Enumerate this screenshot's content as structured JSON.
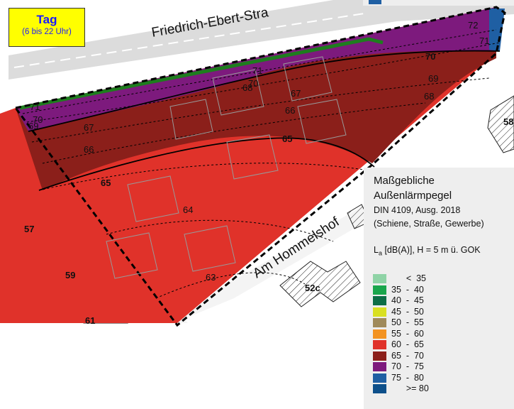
{
  "panel": {
    "title": "Tag",
    "subtitle": "(6 bis 22 Uhr)"
  },
  "streets": {
    "north": "Friedrich-Ebert-Stra",
    "south": "Am Hommelshof"
  },
  "house_numbers": {
    "h57": "57",
    "h59": "59",
    "h61": "61",
    "h52c": "52c",
    "h58": "58"
  },
  "contour_labels": {
    "c72": "72",
    "c71a": "71",
    "c70a": "70",
    "c69": "69",
    "c68a": "68",
    "c71b": "71",
    "c70b": "70",
    "c68b": "68",
    "c67a": "67",
    "c66a": "66",
    "c65a": "65",
    "c71c": "71",
    "c70c": "70",
    "c69b": "69",
    "c67b": "67",
    "c66b": "66",
    "c65b": "65",
    "c64": "64",
    "c63": "63"
  },
  "legend": {
    "title_line1": "Maßgebliche",
    "title_line2": "Außenlärmpegel",
    "norm": "DIN 4109, Ausg. 2018",
    "sources": "(Schiene, Straße, Gewerbe)",
    "metric_prefix": "L",
    "metric_sub": "a",
    "metric_suffix": " [dB(A)], H = 5 m ü. GOK",
    "items": [
      {
        "label": "      <  35",
        "color": "#8fd3a6"
      },
      {
        "label": "35  -  40",
        "color": "#1aa64c"
      },
      {
        "label": "40  -  45",
        "color": "#0d6e46"
      },
      {
        "label": "45  -  50",
        "color": "#d9e021"
      },
      {
        "label": "50  -  55",
        "color": "#a08a5a"
      },
      {
        "label": "55  -  60",
        "color": "#f39321"
      },
      {
        "label": "60  -  65",
        "color": "#e0322a"
      },
      {
        "label": "65  -  70",
        "color": "#8b1f1a"
      },
      {
        "label": "70  -  75",
        "color": "#7d1a7d"
      },
      {
        "label": "75  -  80",
        "color": "#1f5fa3"
      },
      {
        "label": "      >= 80",
        "color": "#0d4f8a"
      }
    ]
  },
  "colors": {
    "zone_60_65": "#e0322a",
    "zone_65_70": "#8b1f1a",
    "zone_70_75": "#7d1a7d",
    "zone_75_80": "#1f5fa3",
    "street": "#dcdcdc",
    "noise_wall": "#1e7d1e"
  }
}
